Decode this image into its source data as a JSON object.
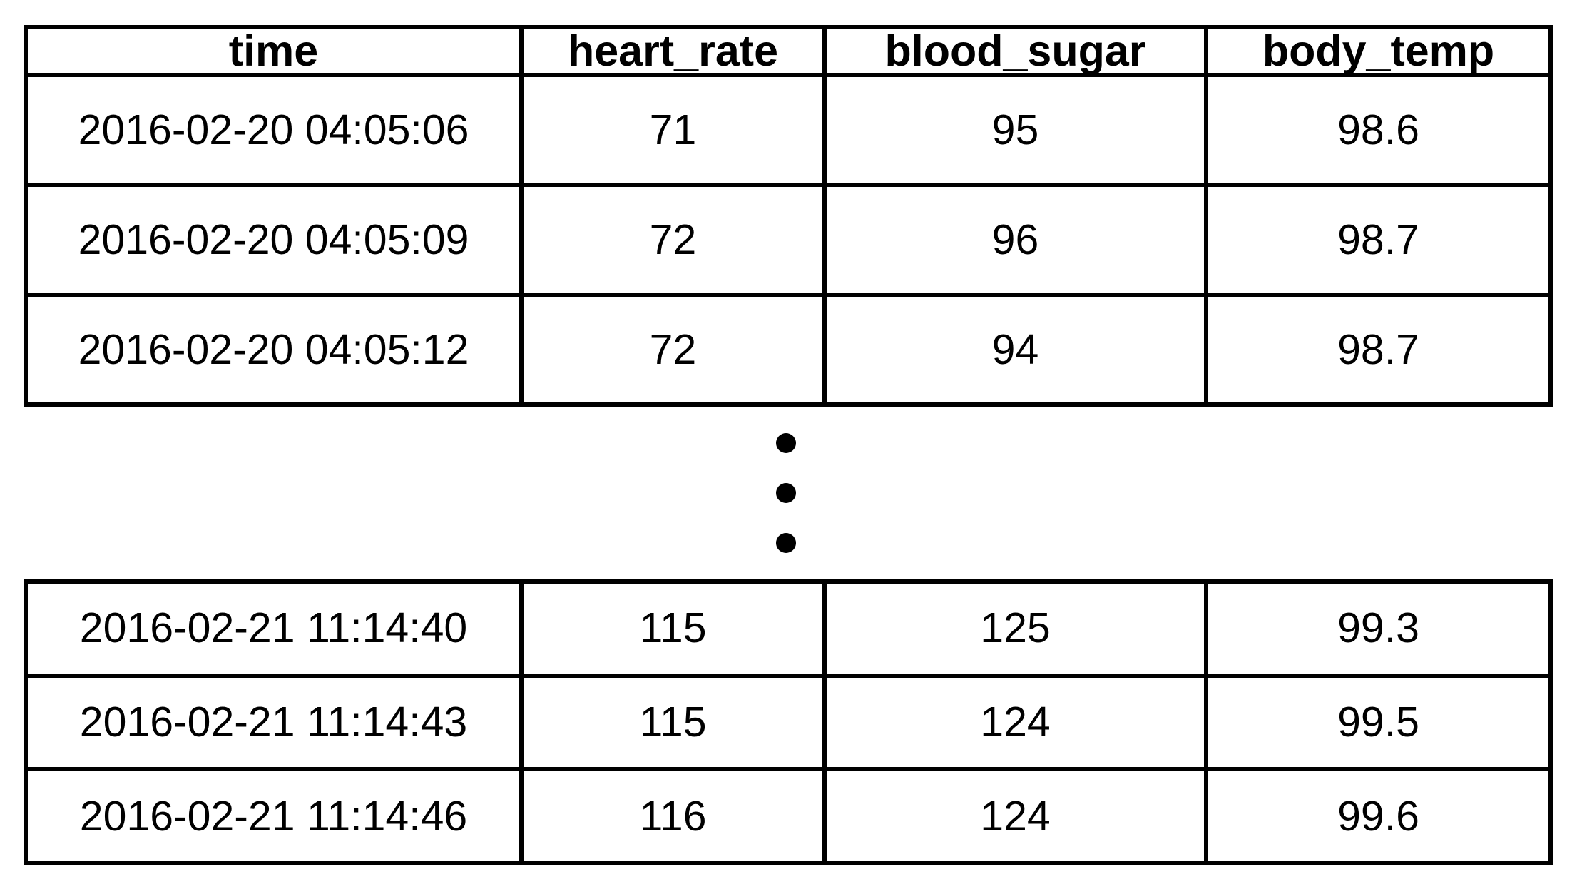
{
  "chart_data": {
    "type": "table",
    "columns": [
      "time",
      "heart_rate",
      "blood_sugar",
      "body_temp"
    ],
    "top_rows": [
      [
        "2016-02-20 04:05:06",
        "71",
        "95",
        "98.6"
      ],
      [
        "2016-02-20 04:05:09",
        "72",
        "96",
        "98.7"
      ],
      [
        "2016-02-20 04:05:12",
        "72",
        "94",
        "98.7"
      ]
    ],
    "bottom_rows": [
      [
        "2016-02-21 11:14:40",
        "115",
        "125",
        "99.3"
      ],
      [
        "2016-02-21 11:14:43",
        "115",
        "124",
        "99.5"
      ],
      [
        "2016-02-21 11:14:46",
        "116",
        "124",
        "99.6"
      ]
    ],
    "rows_omitted_indicator": "vertical-ellipsis"
  },
  "colors": {
    "background": "#ffffff",
    "border": "#000000",
    "text": "#000000"
  }
}
